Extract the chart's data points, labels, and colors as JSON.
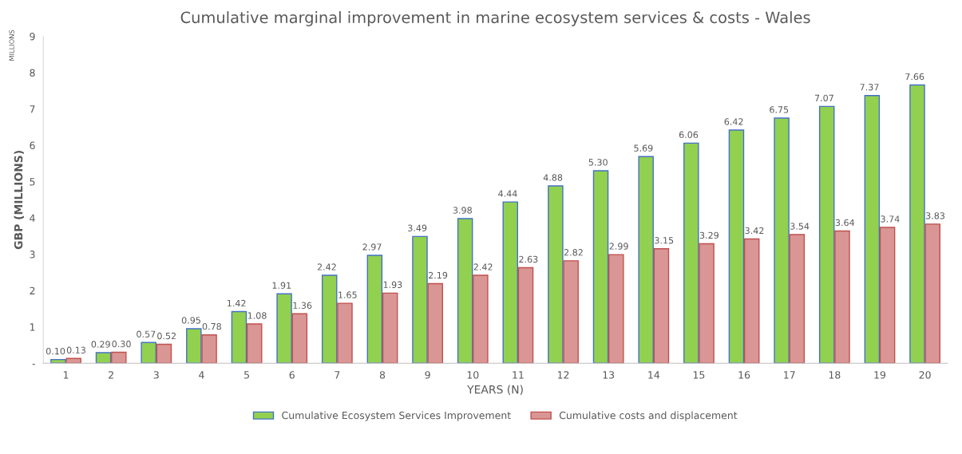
{
  "chart_data": {
    "type": "bar",
    "title": "Cumulative marginal improvement in marine ecosystem services & costs - Wales",
    "xlabel": "YEARS (N)",
    "ylabel": "GBP (MILLIONS)",
    "annotations": [
      "MILLIONS"
    ],
    "categories": [
      "1",
      "2",
      "3",
      "4",
      "5",
      "6",
      "7",
      "8",
      "9",
      "10",
      "11",
      "12",
      "13",
      "14",
      "15",
      "16",
      "17",
      "18",
      "19",
      "20"
    ],
    "series": [
      {
        "name": "Cumulative Ecosystem Services Improvement",
        "color": "#92d050",
        "values": [
          0.1,
          0.29,
          0.57,
          0.95,
          1.42,
          1.91,
          2.42,
          2.97,
          3.49,
          3.98,
          4.44,
          4.88,
          5.3,
          5.69,
          6.06,
          6.42,
          6.75,
          7.07,
          7.37,
          7.66
        ],
        "value_labels": [
          "0.10",
          "0.29",
          "0.57",
          "0.95",
          "1.42",
          "1.91",
          "2.42",
          "2.97",
          "3.49",
          "3.98",
          "4.44",
          "4.88",
          "5.30",
          "5.69",
          "6.06",
          "6.42",
          "6.75",
          "7.07",
          "7.37",
          "7.66"
        ]
      },
      {
        "name": "Cumulative costs and displacement",
        "color": "#d99694",
        "values": [
          0.13,
          0.3,
          0.52,
          0.78,
          1.08,
          1.36,
          1.65,
          1.93,
          2.19,
          2.42,
          2.63,
          2.82,
          2.99,
          3.15,
          3.29,
          3.42,
          3.54,
          3.64,
          3.74,
          3.83
        ],
        "value_labels": [
          "0.13",
          "0.30",
          "0.52",
          "0.78",
          "1.08",
          "1.36",
          "1.65",
          "1.93",
          "2.19",
          "2.42",
          "2.63",
          "2.82",
          "2.99",
          "3.15",
          "3.29",
          "3.42",
          "3.54",
          "3.64",
          "3.74",
          "3.83"
        ]
      }
    ],
    "ylim": [
      0,
      9
    ],
    "yticks": [
      {
        "value": 0,
        "label": "-"
      },
      1,
      2,
      3,
      4,
      5,
      6,
      7,
      8,
      9
    ],
    "grid": false,
    "legend": "bottom"
  }
}
